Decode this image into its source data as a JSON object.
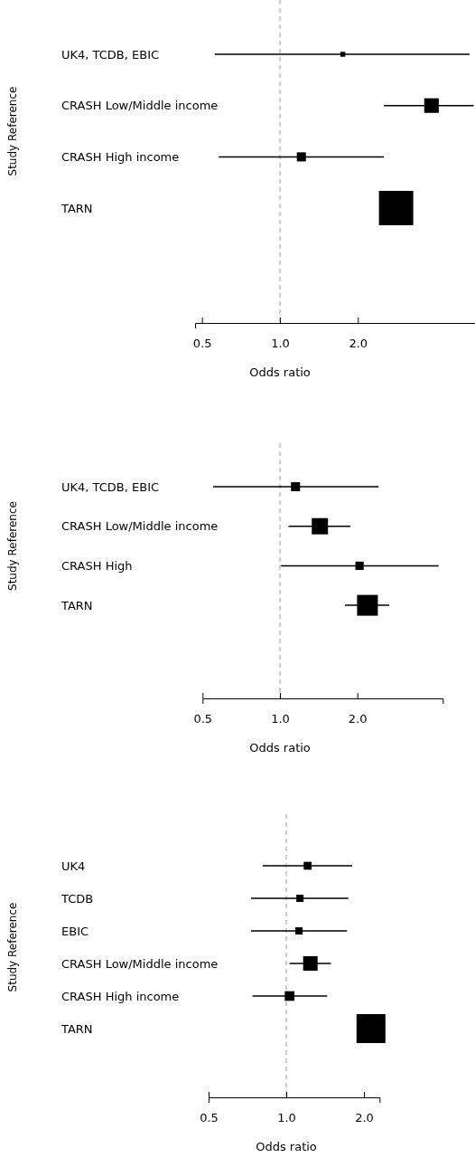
{
  "chart_data": [
    {
      "type": "bubble",
      "orientation": "horizontal",
      "marker": "square",
      "log": "x",
      "ylabel": "Study Reference",
      "xlabel": "Odds ratio",
      "color": "#000000",
      "categories": [
        "UK4, TCDB, EBIC",
        "CRASH Low/Middle income",
        "CRASH High income",
        "TARN"
      ],
      "values": [
        1.75,
        3.85,
        1.21,
        2.81
      ],
      "errors": [
        [
          0.56,
          5.4
        ],
        [
          2.52,
          5.6
        ],
        [
          0.58,
          2.52
        ],
        null
      ],
      "sizes": [
        0.02,
        0.18,
        0.07,
        1
      ],
      "xlim": [
        0.47,
        5.7
      ],
      "xticks": [
        {
          "value": 0.5,
          "label": "0.5"
        },
        {
          "value": 1,
          "label": "1.0"
        },
        {
          "value": 2,
          "label": "2.0"
        }
      ],
      "ref_lines": [
        {
          "axis": "x",
          "value": 1,
          "color": "#bbbbbb",
          "line_style": "dashed"
        }
      ]
    },
    {
      "type": "bubble",
      "orientation": "horizontal",
      "marker": "square",
      "log": "x",
      "ylabel": "Study Reference",
      "xlabel": "Odds ratio",
      "color": "#000000",
      "categories": [
        "UK4, TCDB, EBIC",
        "CRASH Low/Middle income",
        "CRASH High",
        "TARN"
      ],
      "values": [
        1.15,
        1.43,
        2.04,
        2.19
      ],
      "errors": [
        [
          0.55,
          2.42
        ],
        [
          1.08,
          1.88
        ],
        [
          1.01,
          4.14
        ],
        [
          1.79,
          2.66
        ]
      ],
      "sizes": [
        0.19,
        0.61,
        0.16,
        1
      ],
      "xlim": [
        0.5,
        4.3
      ],
      "xticks": [
        {
          "value": 0.5,
          "label": "0.5"
        },
        {
          "value": 1,
          "label": "1.0"
        },
        {
          "value": 2,
          "label": "2.0"
        }
      ],
      "ref_lines": [
        {
          "axis": "x",
          "value": 1,
          "color": "#bbbbbb",
          "line_style": "dashed"
        }
      ]
    },
    {
      "type": "bubble",
      "orientation": "horizontal",
      "marker": "square",
      "log": "x",
      "ylabel": "Study Reference",
      "xlabel": "Odds ratio",
      "color": "#000000",
      "categories": [
        "UK4",
        "TCDB",
        "EBIC",
        "CRASH Low/Middle income",
        "CRASH High income",
        "TARN"
      ],
      "values": [
        1.21,
        1.13,
        1.12,
        1.24,
        1.03,
        2.13
      ],
      "errors": [
        [
          0.81,
          1.8
        ],
        [
          0.73,
          1.74
        ],
        [
          0.73,
          1.72
        ],
        [
          1.03,
          1.49
        ],
        [
          0.74,
          1.44
        ],
        null
      ],
      "sizes": [
        0.074,
        0.0625,
        0.0625,
        0.25,
        0.11,
        1
      ],
      "xlim": [
        0.5,
        2.3
      ],
      "xticks": [
        {
          "value": 0.5,
          "label": "0.5"
        },
        {
          "value": 1,
          "label": "1.0"
        },
        {
          "value": 2,
          "label": "2.0"
        }
      ],
      "ref_lines": [
        {
          "axis": "x",
          "value": 1,
          "color": "#bbbbbb",
          "line_style": "dashed"
        }
      ]
    }
  ]
}
